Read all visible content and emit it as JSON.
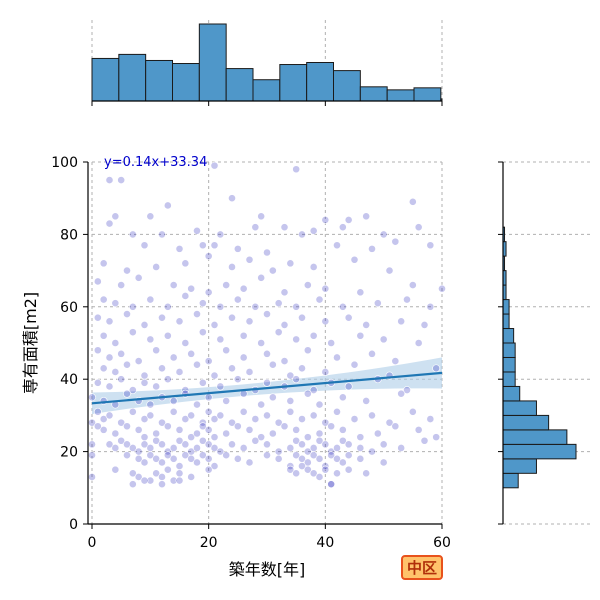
{
  "chart_data": {
    "type": "scatter",
    "xlabel": "築年数[年]",
    "ylabel": "専有面積[m2]",
    "xlim": [
      0,
      60
    ],
    "ylim": [
      0,
      100
    ],
    "x_ticks": [
      "0",
      "20",
      "40",
      "60"
    ],
    "y_ticks": [
      "0",
      "20",
      "40",
      "60",
      "80",
      "100"
    ],
    "grid": true,
    "point_color": "#3030c0",
    "regression": {
      "equation_label": "y=0.14x+33.34",
      "slope": 0.14,
      "intercept": 33.34,
      "line_color": "#1f77b4",
      "band_color": "#aecde8"
    },
    "badge_label": "中区",
    "x_histogram": {
      "bin_edges": [
        0,
        4.6,
        9.2,
        13.8,
        18.4,
        23.0,
        27.6,
        32.2,
        36.8,
        41.4,
        46.0,
        50.6,
        55.2,
        59.8,
        60
      ],
      "counts": [
        42,
        46,
        40,
        37,
        76,
        32,
        21,
        36,
        38,
        30,
        14,
        11,
        13,
        2
      ],
      "color": "#4f97c9"
    },
    "y_histogram": {
      "bin_edges": [
        10,
        14,
        18,
        22,
        26,
        30,
        34,
        38,
        42,
        46,
        50,
        54,
        58,
        62,
        66,
        70,
        74,
        78,
        82
      ],
      "counts": [
        10,
        22,
        48,
        42,
        30,
        22,
        11,
        8,
        8,
        8,
        7,
        4,
        4,
        2,
        2,
        1,
        2,
        1
      ],
      "color": "#4f97c9"
    },
    "points": [
      [
        3,
        95
      ],
      [
        5,
        95
      ],
      [
        21,
        99
      ],
      [
        35,
        98
      ],
      [
        55,
        89
      ],
      [
        13,
        88
      ],
      [
        24,
        90
      ],
      [
        4,
        85
      ],
      [
        10,
        85
      ],
      [
        29,
        85
      ],
      [
        40,
        84
      ],
      [
        44,
        84
      ],
      [
        47,
        85
      ],
      [
        3,
        83
      ],
      [
        7,
        80
      ],
      [
        12,
        80
      ],
      [
        18,
        81
      ],
      [
        22,
        80
      ],
      [
        28,
        82
      ],
      [
        33,
        82
      ],
      [
        36,
        80
      ],
      [
        38,
        81
      ],
      [
        43,
        82
      ],
      [
        50,
        80
      ],
      [
        56,
        82
      ],
      [
        9,
        77
      ],
      [
        15,
        76
      ],
      [
        19,
        77
      ],
      [
        21,
        77
      ],
      [
        25,
        76
      ],
      [
        30,
        75
      ],
      [
        42,
        77
      ],
      [
        48,
        76
      ],
      [
        52,
        78
      ],
      [
        58,
        77
      ],
      [
        2,
        72
      ],
      [
        6,
        70
      ],
      [
        11,
        71
      ],
      [
        16,
        72
      ],
      [
        20,
        74
      ],
      [
        24,
        71
      ],
      [
        27,
        73
      ],
      [
        31,
        70
      ],
      [
        34,
        72
      ],
      [
        38,
        71
      ],
      [
        45,
        73
      ],
      [
        51,
        70
      ],
      [
        1,
        67
      ],
      [
        5,
        66
      ],
      [
        8,
        68
      ],
      [
        14,
        66
      ],
      [
        17,
        65
      ],
      [
        20,
        64
      ],
      [
        23,
        66
      ],
      [
        26,
        65
      ],
      [
        29,
        68
      ],
      [
        33,
        64
      ],
      [
        37,
        66
      ],
      [
        40,
        65
      ],
      [
        46,
        64
      ],
      [
        55,
        66
      ],
      [
        60,
        65
      ],
      [
        2,
        62
      ],
      [
        4,
        61
      ],
      [
        7,
        60
      ],
      [
        10,
        62
      ],
      [
        13,
        60
      ],
      [
        16,
        63
      ],
      [
        19,
        61
      ],
      [
        22,
        60
      ],
      [
        25,
        62
      ],
      [
        28,
        60
      ],
      [
        32,
        61
      ],
      [
        35,
        60
      ],
      [
        39,
        62
      ],
      [
        43,
        60
      ],
      [
        49,
        61
      ],
      [
        54,
        62
      ],
      [
        58,
        60
      ],
      [
        1,
        57
      ],
      [
        3,
        56
      ],
      [
        6,
        58
      ],
      [
        9,
        55
      ],
      [
        12,
        57
      ],
      [
        15,
        56
      ],
      [
        18,
        58
      ],
      [
        21,
        55
      ],
      [
        24,
        57
      ],
      [
        27,
        56
      ],
      [
        30,
        58
      ],
      [
        33,
        55
      ],
      [
        36,
        57
      ],
      [
        40,
        56
      ],
      [
        44,
        57
      ],
      [
        47,
        55
      ],
      [
        53,
        56
      ],
      [
        57,
        55
      ],
      [
        2,
        52
      ],
      [
        4,
        50
      ],
      [
        7,
        53
      ],
      [
        10,
        51
      ],
      [
        13,
        52
      ],
      [
        16,
        50
      ],
      [
        19,
        53
      ],
      [
        22,
        51
      ],
      [
        26,
        52
      ],
      [
        29,
        50
      ],
      [
        32,
        53
      ],
      [
        35,
        51
      ],
      [
        38,
        52
      ],
      [
        41,
        50
      ],
      [
        46,
        52
      ],
      [
        50,
        51
      ],
      [
        56,
        50
      ],
      [
        1,
        48
      ],
      [
        3,
        46
      ],
      [
        5,
        47
      ],
      [
        8,
        45
      ],
      [
        11,
        48
      ],
      [
        14,
        46
      ],
      [
        17,
        47
      ],
      [
        20,
        45
      ],
      [
        23,
        48
      ],
      [
        26,
        46
      ],
      [
        30,
        47
      ],
      [
        33,
        45
      ],
      [
        37,
        48
      ],
      [
        42,
        46
      ],
      [
        48,
        47
      ],
      [
        52,
        45
      ],
      [
        2,
        43
      ],
      [
        4,
        42
      ],
      [
        6,
        44
      ],
      [
        9,
        41
      ],
      [
        12,
        43
      ],
      [
        15,
        42
      ],
      [
        18,
        44
      ],
      [
        21,
        41
      ],
      [
        24,
        43
      ],
      [
        27,
        42
      ],
      [
        31,
        44
      ],
      [
        34,
        41
      ],
      [
        36,
        43
      ],
      [
        40,
        42
      ],
      [
        45,
        44
      ],
      [
        51,
        41
      ],
      [
        59,
        43
      ],
      [
        1,
        39
      ],
      [
        3,
        38
      ],
      [
        5,
        40
      ],
      [
        7,
        37
      ],
      [
        9,
        39
      ],
      [
        11,
        38
      ],
      [
        13,
        40
      ],
      [
        16,
        37
      ],
      [
        19,
        39
      ],
      [
        22,
        38
      ],
      [
        25,
        40
      ],
      [
        28,
        37
      ],
      [
        30,
        39
      ],
      [
        33,
        38
      ],
      [
        35,
        40
      ],
      [
        38,
        37
      ],
      [
        41,
        39
      ],
      [
        44,
        38
      ],
      [
        49,
        40
      ],
      [
        54,
        37
      ],
      [
        0,
        35
      ],
      [
        2,
        34
      ],
      [
        4,
        33
      ],
      [
        6,
        36
      ],
      [
        8,
        34
      ],
      [
        10,
        33
      ],
      [
        12,
        35
      ],
      [
        14,
        34
      ],
      [
        16,
        36
      ],
      [
        18,
        33
      ],
      [
        20,
        35
      ],
      [
        23,
        34
      ],
      [
        26,
        36
      ],
      [
        29,
        33
      ],
      [
        31,
        35
      ],
      [
        34,
        34
      ],
      [
        37,
        36
      ],
      [
        39,
        33
      ],
      [
        43,
        35
      ],
      [
        47,
        34
      ],
      [
        53,
        36
      ],
      [
        1,
        31
      ],
      [
        2,
        29
      ],
      [
        3,
        30
      ],
      [
        5,
        28
      ],
      [
        7,
        31
      ],
      [
        9,
        29
      ],
      [
        10,
        30
      ],
      [
        12,
        28
      ],
      [
        14,
        31
      ],
      [
        16,
        29
      ],
      [
        17,
        30
      ],
      [
        19,
        28
      ],
      [
        20,
        31
      ],
      [
        21,
        29
      ],
      [
        22,
        30
      ],
      [
        24,
        28
      ],
      [
        26,
        31
      ],
      [
        28,
        29
      ],
      [
        30,
        30
      ],
      [
        32,
        28
      ],
      [
        34,
        31
      ],
      [
        36,
        29
      ],
      [
        38,
        30
      ],
      [
        40,
        28
      ],
      [
        42,
        31
      ],
      [
        45,
        29
      ],
      [
        48,
        30
      ],
      [
        51,
        28
      ],
      [
        55,
        31
      ],
      [
        58,
        29
      ],
      [
        2,
        26
      ],
      [
        4,
        25
      ],
      [
        6,
        27
      ],
      [
        8,
        26
      ],
      [
        9,
        24
      ],
      [
        11,
        25
      ],
      [
        13,
        27
      ],
      [
        15,
        26
      ],
      [
        17,
        24
      ],
      [
        18,
        25
      ],
      [
        19,
        27
      ],
      [
        20,
        26
      ],
      [
        21,
        24
      ],
      [
        23,
        25
      ],
      [
        25,
        27
      ],
      [
        27,
        26
      ],
      [
        29,
        24
      ],
      [
        31,
        25
      ],
      [
        33,
        27
      ],
      [
        35,
        26
      ],
      [
        37,
        24
      ],
      [
        39,
        25
      ],
      [
        41,
        27
      ],
      [
        43,
        26
      ],
      [
        46,
        24
      ],
      [
        49,
        25
      ],
      [
        52,
        27
      ],
      [
        56,
        26
      ],
      [
        59,
        24
      ],
      [
        3,
        22
      ],
      [
        4,
        21
      ],
      [
        5,
        23
      ],
      [
        6,
        22
      ],
      [
        7,
        21
      ],
      [
        8,
        20
      ],
      [
        9,
        22
      ],
      [
        10,
        21
      ],
      [
        11,
        23
      ],
      [
        12,
        22
      ],
      [
        13,
        20
      ],
      [
        14,
        21
      ],
      [
        15,
        23
      ],
      [
        16,
        22
      ],
      [
        17,
        20
      ],
      [
        18,
        21
      ],
      [
        19,
        23
      ],
      [
        20,
        22
      ],
      [
        21,
        21
      ],
      [
        22,
        20
      ],
      [
        24,
        22
      ],
      [
        26,
        21
      ],
      [
        28,
        23
      ],
      [
        30,
        22
      ],
      [
        32,
        20
      ],
      [
        34,
        21
      ],
      [
        35,
        23
      ],
      [
        36,
        22
      ],
      [
        37,
        20
      ],
      [
        38,
        21
      ],
      [
        39,
        23
      ],
      [
        40,
        22
      ],
      [
        41,
        20
      ],
      [
        42,
        21
      ],
      [
        43,
        23
      ],
      [
        44,
        22
      ],
      [
        46,
        21
      ],
      [
        48,
        20
      ],
      [
        50,
        22
      ],
      [
        53,
        21
      ],
      [
        57,
        23
      ],
      [
        6,
        19
      ],
      [
        8,
        18
      ],
      [
        9,
        17
      ],
      [
        10,
        19
      ],
      [
        11,
        18
      ],
      [
        12,
        17
      ],
      [
        13,
        19
      ],
      [
        14,
        18
      ],
      [
        15,
        16
      ],
      [
        16,
        19
      ],
      [
        17,
        18
      ],
      [
        18,
        17
      ],
      [
        19,
        19
      ],
      [
        20,
        18
      ],
      [
        21,
        16
      ],
      [
        23,
        19
      ],
      [
        25,
        18
      ],
      [
        27,
        17
      ],
      [
        30,
        19
      ],
      [
        32,
        18
      ],
      [
        34,
        16
      ],
      [
        35,
        19
      ],
      [
        36,
        18
      ],
      [
        37,
        17
      ],
      [
        38,
        19
      ],
      [
        39,
        18
      ],
      [
        40,
        16
      ],
      [
        41,
        19
      ],
      [
        42,
        18
      ],
      [
        43,
        17
      ],
      [
        44,
        19
      ],
      [
        46,
        18
      ],
      [
        50,
        17
      ],
      [
        4,
        15
      ],
      [
        7,
        14
      ],
      [
        8,
        13
      ],
      [
        10,
        12
      ],
      [
        11,
        14
      ],
      [
        12,
        13
      ],
      [
        13,
        15
      ],
      [
        14,
        12
      ],
      [
        15,
        14
      ],
      [
        17,
        13
      ],
      [
        20,
        15
      ],
      [
        34,
        15
      ],
      [
        35,
        14
      ],
      [
        36,
        16
      ],
      [
        37,
        15
      ],
      [
        38,
        14
      ],
      [
        39,
        13
      ],
      [
        40,
        15
      ],
      [
        41,
        11
      ],
      [
        42,
        14
      ],
      [
        44,
        15
      ],
      [
        47,
        14
      ],
      [
        7,
        11
      ],
      [
        9,
        12
      ],
      [
        12,
        11
      ],
      [
        15,
        12
      ],
      [
        41,
        11
      ],
      [
        0,
        22
      ],
      [
        0,
        28
      ],
      [
        1,
        27
      ],
      [
        0,
        19
      ],
      [
        0,
        13
      ]
    ]
  }
}
